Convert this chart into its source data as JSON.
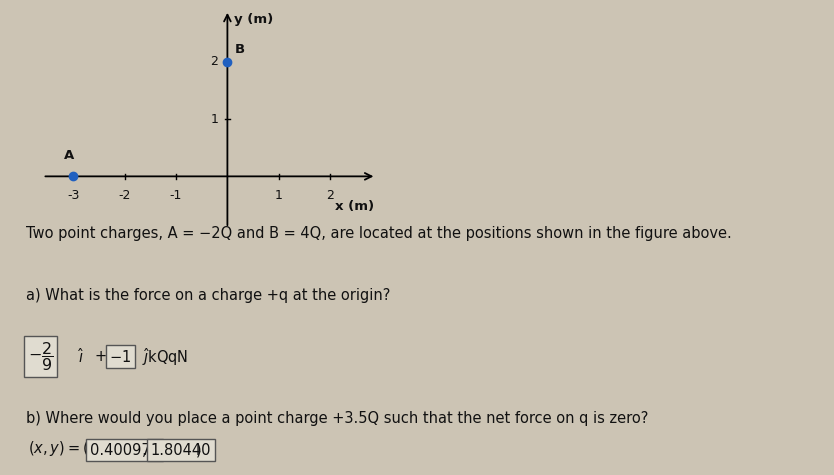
{
  "bg_color": "#ccc4b4",
  "graph_xlim": [
    -3.6,
    2.9
  ],
  "graph_ylim": [
    -0.9,
    2.9
  ],
  "x_ticks": [
    -3,
    -2,
    -1,
    1,
    2
  ],
  "y_ticks": [
    1,
    2
  ],
  "x_label": "x (m)",
  "y_label": "y (m)",
  "point_A": [
    -3,
    0
  ],
  "point_B": [
    0,
    2
  ],
  "point_color": "#2060c0",
  "label_A": "A",
  "label_B": "B",
  "title_line": "Two point charges, A = −2Q and B = 4Q, are located at the positions shown in the figure above.",
  "q_a_line": "a) What is the force on a charge +q at the origin?",
  "q_b_line": "b) Where would you place a point charge +3.5Q such that the net force on q is zero?",
  "answer_box1": "0.400978",
  "answer_box2": "1.80440",
  "text_color": "#111111",
  "box_facecolor": "#e0dcd0",
  "box_edgecolor": "#555555",
  "font_size_text": 10.5,
  "font_size_axis_label": 9.5,
  "font_size_ticks": 9,
  "font_size_point_label": 9.5
}
